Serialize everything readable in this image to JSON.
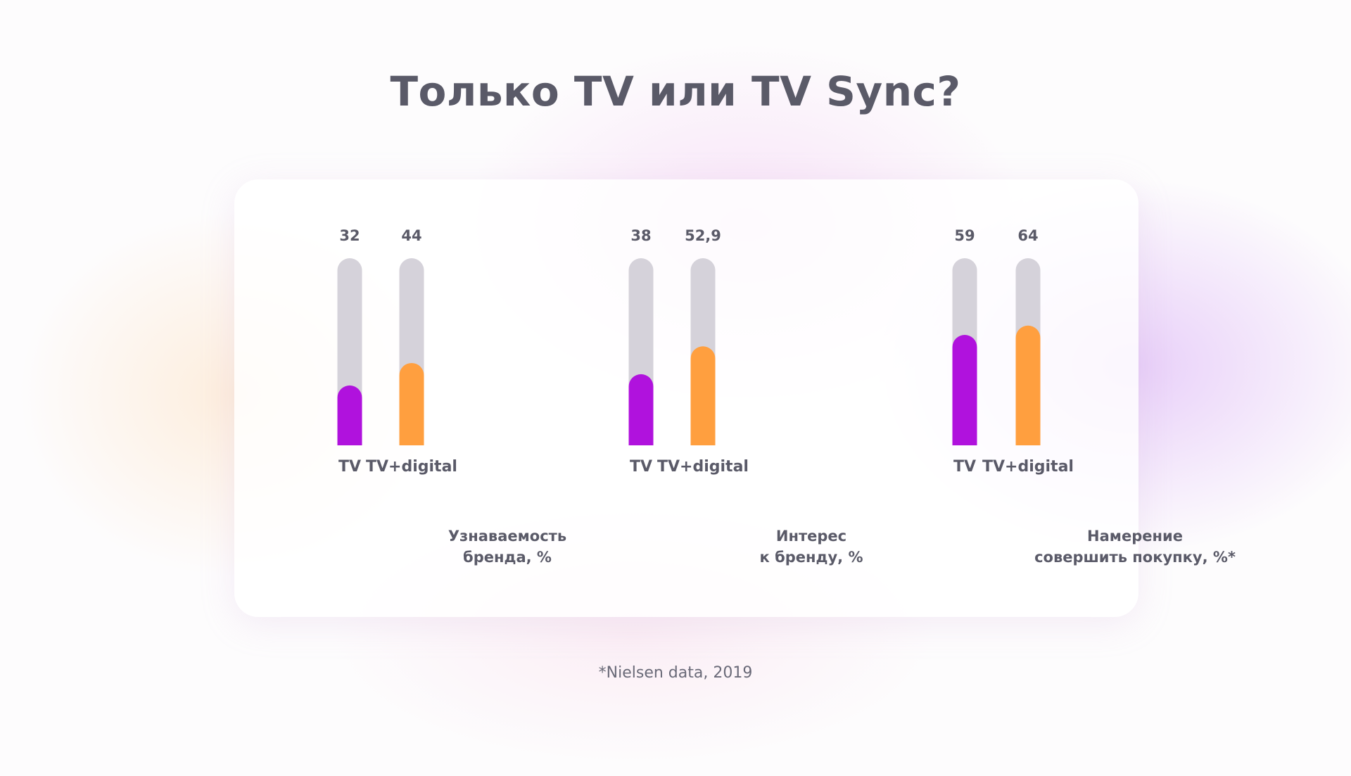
{
  "title": "Только TV или TV Sync?",
  "footnote": "*Nielsen data, 2019",
  "colors": {
    "tv": "#b012dd",
    "tv_digital": "#ff9f3f",
    "track": "#d5d2da",
    "text": "#5a5a68"
  },
  "chart_data": {
    "type": "bar",
    "title": "Только TV или TV Sync?",
    "ylim": [
      0,
      100
    ],
    "grid": false,
    "groups": [
      {
        "caption": [
          "Узнаваемость",
          "бренда, %"
        ],
        "categories": [
          "TV",
          "TV+digital"
        ],
        "values": [
          32,
          44
        ],
        "value_labels": [
          "32",
          "44"
        ]
      },
      {
        "caption": [
          "Интерес",
          "к бренду, %"
        ],
        "categories": [
          "TV",
          "TV+digital"
        ],
        "values": [
          38,
          52.9
        ],
        "value_labels": [
          "38",
          "52,9"
        ]
      },
      {
        "caption": [
          "Намерение",
          "совершить покупку, %*"
        ],
        "categories": [
          "TV",
          "TV+digital"
        ],
        "values": [
          59,
          64
        ],
        "value_labels": [
          "59",
          "64"
        ]
      }
    ]
  }
}
